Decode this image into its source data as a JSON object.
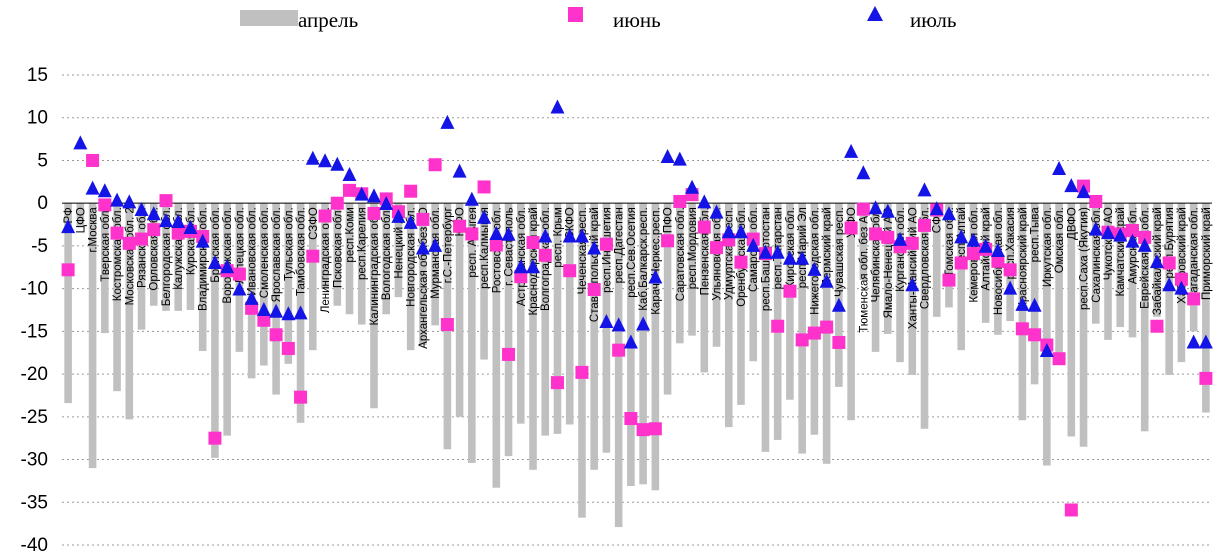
{
  "chart_data": {
    "type": "bar",
    "title": "",
    "xlabel": "",
    "ylabel": "",
    "ylim": [
      -40,
      15
    ],
    "yticks": [
      15,
      10,
      5,
      0,
      -5,
      -10,
      -15,
      -20,
      -25,
      -30,
      -35,
      -40
    ],
    "grid": true,
    "legend_position": "top",
    "colors": {
      "april": "#c0c0c0",
      "june": "#ff33cc",
      "july": "#1414e6"
    },
    "categories": [
      "РФ",
      "ЦФО",
      "г.Москва",
      "Тверская обл.",
      "Костромская обл.",
      "Московская обл. 2",
      "Рязанская обл.",
      "Орловская обл.",
      "Белгородская обл.",
      "Калужская обл.",
      "Курская обл.",
      "Владимирская обл.",
      "Брянская обл.",
      "Воронежская обл.",
      "Липецкая обл.",
      "Ивановская обл.",
      "Смоленская обл.",
      "Ярославская обл.",
      "Тульская обл.",
      "Тамбовская обл.",
      "СЗФО",
      "Ленинградская обл.",
      "Псковская обл.",
      "респ.Коми",
      "респ.Карелия",
      "Калининградская обл.",
      "Вологодская обл.",
      "Ненецкий АО",
      "Новгородская обл.",
      "Архангельская обл.без АО",
      "Мурманская обл.",
      "г.С.-Петербург",
      "ЮФО",
      "респ. Адыгея",
      "респ.Калмыкия",
      "Ростовская обл.",
      "г. Севастополь",
      "Астраханская обл.",
      "Краснодарский край",
      "Волгоградская обл.",
      "респ. Крым",
      "СКФО",
      "Чеченская респ.",
      "Ставропольский край",
      "респ.Ингушетия",
      "респ.Дагестан",
      "респ.Сев.Осетия",
      "Каб.Балкарск.респ.",
      "Карач.-Черкес.респ.",
      "ПФО",
      "Саратовская обл.",
      "респ.Мордовия",
      "Пензенская обл.",
      "Ульяновская обл.",
      "Удмуртская респ.",
      "Оренбургская обл.",
      "Самарская обл.",
      "респ.Башкортостан",
      "респ.Татарстан",
      "Кировская обл.",
      "респ.Марий Эл",
      "Нижегородская обл.",
      "Пермский край",
      "Чувашская респ.",
      "УрФО",
      "Тюменская обл. без АО",
      "Челябинская обл.",
      "Ямало-Ненецкий АО",
      "Курганская обл.",
      "Ханты-Мансийский АО",
      "Свердловская обл.",
      "СФО",
      "Томская обл.",
      "респ.Алтай",
      "Кемеровская обл.",
      "Алтайский край",
      "Новосибирская обл.",
      "респ.Хакасия",
      "Красноярский край",
      "респ.Тыва",
      "Иркутская обл.",
      "Омская обл.",
      "ДВФО",
      "респ.Саха (Якутия)",
      "Сахалинская обл.",
      "Чукотский АО",
      "Камчатский край",
      "Амурская обл.",
      "Еврейская авт.обл.",
      "Забайкальский край",
      "респ.Бурятия",
      "Хабаровский край",
      "Магаданская обл.",
      "Приморский край"
    ],
    "series": [
      {
        "name": "апрель",
        "type": "bar",
        "values": [
          -23.4,
          -2.8,
          -31.0,
          -15.2,
          -22.0,
          -25.3,
          -14.8,
          -12.0,
          -12.6,
          -12.6,
          -12.5,
          -17.3,
          -29.8,
          -27.2,
          -17.4,
          -20.5,
          -19.0,
          -22.4,
          -18.8,
          -25.7,
          -17.2,
          -10.0,
          -12.0,
          -13.0,
          -14.2,
          -24.0,
          -13.0,
          -11.0,
          -17.2,
          -16.6,
          -14.3,
          -28.8,
          -25.0,
          -30.4,
          -18.3,
          -33.3,
          -29.6,
          -25.8,
          -31.2,
          -27.2,
          -27.0,
          -25.9,
          -36.8,
          -31.2,
          -29.2,
          -37.9,
          -33.1,
          -32.9,
          -33.6,
          -22.4,
          -16.4,
          -15.5,
          -19.8,
          -16.8,
          -26.2,
          -23.6,
          -18.5,
          -29.1,
          -27.7,
          -23.0,
          -29.3,
          -27.1,
          -30.5,
          -21.5,
          -25.4,
          -9.0,
          -17.4,
          -15.3,
          -18.6,
          -20.1,
          -26.4,
          -13.3,
          -12.2,
          -17.2,
          -11.2,
          -14.0,
          -15.4,
          -13.8,
          -25.4,
          -21.2,
          -30.7,
          -18.9,
          -27.3,
          -28.5,
          -14.1,
          -16.0,
          -14.5,
          -15.7,
          -26.7,
          -13.3,
          -20.1,
          -18.6,
          -15.0,
          -24.5
        ]
      },
      {
        "name": "июнь",
        "type": "marker",
        "values": [
          -7.8,
          null,
          5.0,
          -0.2,
          -3.5,
          -4.7,
          -4.2,
          -3.1,
          0.3,
          -3.5,
          -3.3,
          -3.9,
          -27.5,
          -7.9,
          -8.3,
          -12.3,
          -13.7,
          -15.4,
          -17.0,
          -22.7,
          -6.2,
          -1.5,
          0.0,
          1.5,
          1.1,
          -1.2,
          0.5,
          -1.0,
          1.4,
          -1.9,
          4.5,
          -14.2,
          -2.7,
          -3.6,
          1.9,
          -4.9,
          -17.7,
          -8.6,
          -4.6,
          -6.1,
          -21.0,
          -7.9,
          -19.8,
          -10.1,
          -4.8,
          -17.2,
          -25.2,
          -26.5,
          -26.4,
          -4.4,
          0.2,
          1.0,
          -2.8,
          -5.2,
          -4.3,
          -6.9,
          -4.2,
          -5.9,
          -14.4,
          -10.3,
          -16.0,
          -15.2,
          -14.5,
          -16.3,
          -2.9,
          -0.7,
          -3.6,
          -4.0,
          -5.1,
          -4.7,
          -2.6,
          -0.8,
          -9.0,
          -7.0,
          -5.9,
          -5.4,
          -6.8,
          -7.8,
          -14.7,
          -15.4,
          -16.6,
          -18.2,
          -35.9,
          2.0,
          0.2,
          -3.4,
          -3.6,
          -3.2,
          -4.0,
          -14.4,
          -7.0,
          -8.9,
          -11.2,
          -20.5
        ]
      },
      {
        "name": "июль",
        "type": "marker",
        "values": [
          -2.8,
          7.0,
          1.7,
          1.4,
          0.3,
          0.1,
          -0.8,
          -1.3,
          -2.1,
          -2.2,
          -2.9,
          -4.5,
          -7.0,
          -7.5,
          -10.1,
          -11.2,
          -12.5,
          -12.7,
          -13.0,
          -12.9,
          5.2,
          4.9,
          4.5,
          3.3,
          1.0,
          0.8,
          -0.1,
          -1.6,
          -2.3,
          -5.3,
          -5.0,
          9.4,
          3.7,
          0.4,
          -1.7,
          -3.6,
          -3.7,
          -7.5,
          -7.5,
          -3.9,
          11.2,
          -3.9,
          -3.9,
          -5.3,
          -13.9,
          -14.3,
          -16.3,
          -14.2,
          -8.7,
          5.4,
          5.1,
          1.8,
          0.1,
          -1.1,
          -3.4,
          -3.4,
          -5.0,
          -5.8,
          -5.8,
          -6.5,
          -6.5,
          -7.8,
          -9.2,
          -12.0,
          6.0,
          3.5,
          -0.6,
          -1.0,
          -4.3,
          -9.6,
          1.5,
          -0.7,
          -1.3,
          -4.0,
          -4.4,
          -5.1,
          -5.6,
          -10.0,
          -11.9,
          -12.0,
          -17.3,
          4.0,
          2.0,
          1.3,
          -3.1,
          -3.5,
          -3.8,
          -4.5,
          -5.0,
          -6.9,
          -9.6,
          -10.0,
          -16.3,
          -16.3
        ]
      }
    ]
  }
}
